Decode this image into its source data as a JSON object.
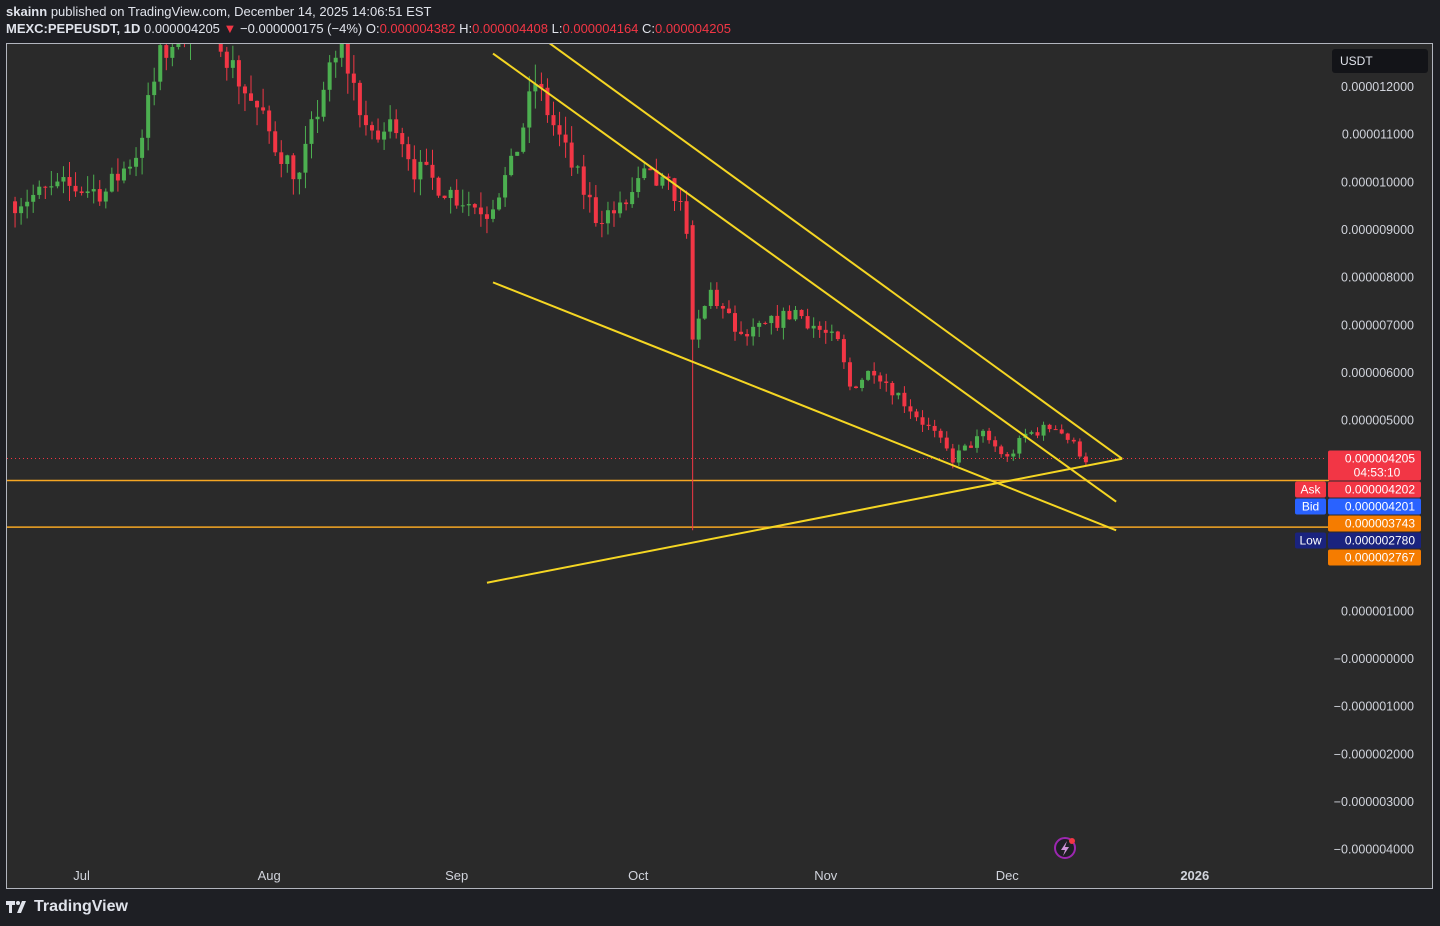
{
  "header": {
    "publisher": "skainn",
    "published_text": "published on TradingView.com, December 14, 2025 14:06:51 EST",
    "symbol": "MEXC:PEPEUSDT, 1D",
    "price": "0.000004205",
    "change_arrow": "▼",
    "change": "−0.000000175 (−4%)",
    "o_label": "O:",
    "o_value": "0.000004382",
    "h_label": "H:",
    "h_value": "0.000004408",
    "l_label": "L:",
    "l_value": "0.000004164",
    "c_label": "C:",
    "c_value": "0.000004205"
  },
  "currency_button": "USDT",
  "footer": {
    "brand": "TradingView"
  },
  "colors": {
    "up": "#26a69a",
    "up_bright": "#4caf50",
    "down": "#f23645",
    "trendline": "#f5d623",
    "hline": "#f5a623",
    "bg": "#2a2a2a"
  },
  "chart_data": {
    "type": "candlestick",
    "symbol": "MEXC:PEPEUSDT",
    "timeframe": "1D",
    "x_tick_labels": [
      "Jul",
      "Aug",
      "Sep",
      "Oct",
      "Nov",
      "Dec",
      "2026"
    ],
    "y_tick_labels": [
      "0.000012000",
      "0.000011000",
      "0.000010000",
      "0.000009000",
      "0.000008000",
      "0.000007000",
      "0.000006000",
      "0.000005000",
      "0.000001000",
      "−0.000000000",
      "−0.000001000",
      "−0.000002000",
      "−0.000003000",
      "−0.000004000"
    ],
    "ylim": [
      -4.3e-06,
      1.29e-05
    ],
    "close_path": [
      [
        "2025-06-20",
        9.6e-06
      ],
      [
        "2025-06-28",
        9.9e-06
      ],
      [
        "2025-07-05",
        9.8e-06
      ],
      [
        "2025-07-10",
        1.06e-05
      ],
      [
        "2025-07-14",
        1.26e-05
      ],
      [
        "2025-07-18",
        1.33e-05
      ],
      [
        "2025-07-23",
        1.34e-05
      ],
      [
        "2025-07-26",
        1.24e-05
      ],
      [
        "2025-08-02",
        1.08e-05
      ],
      [
        "2025-08-06",
        1.01e-05
      ],
      [
        "2025-08-10",
        1.2e-05
      ],
      [
        "2025-08-13",
        1.28e-05
      ],
      [
        "2025-08-18",
        1.08e-05
      ],
      [
        "2025-08-22",
        1.13e-05
      ],
      [
        "2025-08-25",
        1.03e-05
      ],
      [
        "2025-09-01",
        9.7e-06
      ],
      [
        "2025-09-06",
        9.4e-06
      ],
      [
        "2025-09-10",
        1.03e-05
      ],
      [
        "2025-09-14",
        1.21e-05
      ],
      [
        "2025-09-19",
        1.06e-05
      ],
      [
        "2025-09-24",
        9.3e-06
      ],
      [
        "2025-09-28",
        9.4e-06
      ],
      [
        "2025-10-02",
        1.01e-05
      ],
      [
        "2025-10-07",
        9.8e-06
      ],
      [
        "2025-10-09",
        9.1e-06
      ],
      [
        "2025-10-10",
        6.7e-06
      ],
      [
        "2025-10-13",
        7.7e-06
      ],
      [
        "2025-10-18",
        6.7e-06
      ],
      [
        "2025-10-27",
        7.3e-06
      ],
      [
        "2025-11-03",
        6.6e-06
      ],
      [
        "2025-11-05",
        5.7e-06
      ],
      [
        "2025-11-09",
        6.1e-06
      ],
      [
        "2025-11-14",
        5.4e-06
      ],
      [
        "2025-11-19",
        4.7e-06
      ],
      [
        "2025-11-22",
        4.2e-06
      ],
      [
        "2025-11-27",
        4.7e-06
      ],
      [
        "2025-12-01",
        4.2e-06
      ],
      [
        "2025-12-04",
        4.7e-06
      ],
      [
        "2025-12-09",
        4.9e-06
      ],
      [
        "2025-12-14",
        4.2e-06
      ]
    ],
    "price_labels": [
      {
        "label": "",
        "value": "0.000004205",
        "sub": "04:53:10",
        "color": "#f23645"
      },
      {
        "label": "Ask",
        "value": "0.000004202",
        "color": "#f23645"
      },
      {
        "label": "Bid",
        "value": "0.000004201",
        "color": "#2962ff"
      },
      {
        "label": "",
        "value": "0.000003743",
        "color": "#f57c00"
      },
      {
        "label": "Low",
        "value": "0.000002780",
        "color": "#1a237e"
      },
      {
        "label": "",
        "value": "0.000002767",
        "color": "#f57c00"
      }
    ],
    "horizontal_lines": [
      3.743e-06,
      2.767e-06
    ],
    "trendlines": [
      {
        "from": [
          "2025-09-10",
          1.35e-05
        ],
        "to": [
          "2025-12-20",
          4.2e-06
        ]
      },
      {
        "from": [
          "2025-09-07",
          1.27e-05
        ],
        "to": [
          "2025-12-19",
          3.3e-06
        ]
      },
      {
        "from": [
          "2025-09-07",
          7.9e-06
        ],
        "to": [
          "2025-12-19",
          2.7e-06
        ]
      },
      {
        "from": [
          "2025-09-06",
          1.6e-06
        ],
        "to": [
          "2025-12-20",
          4.2e-06
        ]
      }
    ]
  }
}
